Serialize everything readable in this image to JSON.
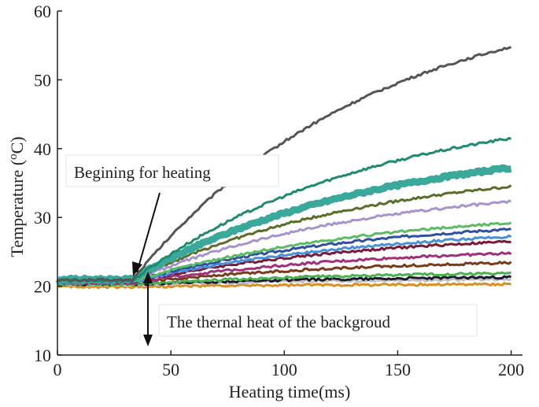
{
  "chart_data": {
    "type": "line",
    "xlabel": "Heating time(ms)",
    "ylabel_main": "Temperature (",
    "ylabel_sup": "o",
    "ylabel_tail": "C)",
    "xlim": [
      0,
      205
    ],
    "ylim": [
      10,
      60
    ],
    "xticks": [
      0,
      50,
      100,
      150,
      200
    ],
    "yticks": [
      10,
      20,
      30,
      40,
      50,
      60
    ],
    "grid": false,
    "x_start": 0,
    "x_end": 200,
    "heating_onset": 33,
    "series": [
      {
        "base": 20.9,
        "final": 54.8,
        "color": "#555555",
        "width": 3
      },
      {
        "base": 20.8,
        "final": 41.5,
        "color": "#1f8a6f",
        "width": 3
      },
      {
        "base": 21.0,
        "final": 37.2,
        "color": "#3aa89a",
        "width": 9
      },
      {
        "base": 20.9,
        "final": 34.5,
        "color": "#5a6e2a",
        "width": 3
      },
      {
        "base": 20.8,
        "final": 32.3,
        "color": "#a894cc",
        "width": 3
      },
      {
        "base": 20.7,
        "final": 29.2,
        "color": "#5dbb63",
        "width": 3
      },
      {
        "base": 20.7,
        "final": 28.3,
        "color": "#2f50a0",
        "width": 3
      },
      {
        "base": 20.6,
        "final": 27.2,
        "color": "#4a90d9",
        "width": 3
      },
      {
        "base": 20.6,
        "final": 26.5,
        "color": "#7a1a3a",
        "width": 3
      },
      {
        "base": 20.5,
        "final": 24.8,
        "color": "#a0307a",
        "width": 3
      },
      {
        "base": 20.5,
        "final": 23.4,
        "color": "#7a3b1a",
        "width": 3
      },
      {
        "base": 20.3,
        "final": 21.9,
        "color": "#4caf50",
        "width": 3
      },
      {
        "base": 20.3,
        "final": 21.3,
        "color": "#1a1a2e",
        "width": 3
      },
      {
        "base": 20.2,
        "final": 21.0,
        "color": "#c0c0c0",
        "width": 3
      },
      {
        "base": 19.9,
        "final": 20.3,
        "color": "#d99020",
        "width": 3
      }
    ],
    "annotations": [
      {
        "text": "Begining for heating"
      },
      {
        "text": "The thernal heat of the backgroud"
      }
    ]
  }
}
